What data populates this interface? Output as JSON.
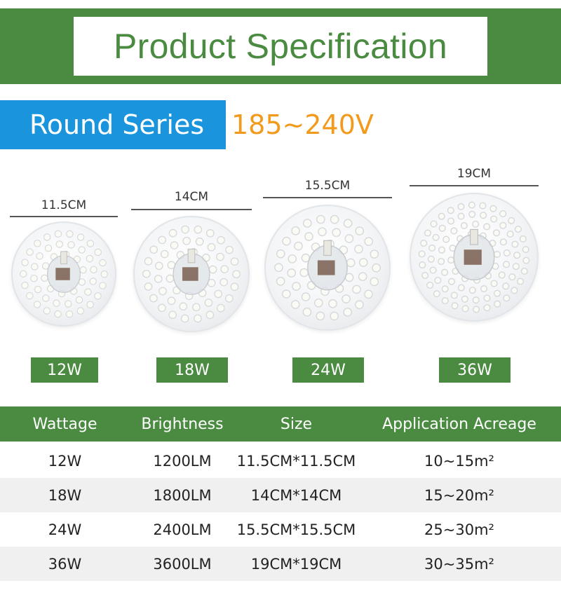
{
  "header": {
    "title": "Product Specification"
  },
  "series": {
    "label": "Round Series",
    "voltage": "185~240V"
  },
  "products": [
    {
      "size_label": "11.5CM",
      "wattage": "12W"
    },
    {
      "size_label": "14CM",
      "wattage": "18W"
    },
    {
      "size_label": "15.5CM",
      "wattage": "24W"
    },
    {
      "size_label": "19CM",
      "wattage": "36W"
    }
  ],
  "table": {
    "headers": [
      "Wattage",
      "Brightness",
      "Size",
      "Application Acreage"
    ],
    "rows": [
      [
        "12W",
        "1200LM",
        "11.5CM*11.5CM",
        "10~15m²"
      ],
      [
        "18W",
        "1800LM",
        "14CM*14CM",
        "15~20m²"
      ],
      [
        "24W",
        "2400LM",
        "15.5CM*15.5CM",
        "25~30m²"
      ],
      [
        "36W",
        "3600LM",
        "19CM*19CM",
        "30~35m²"
      ]
    ]
  },
  "colors": {
    "brand_green": "#4a8b41",
    "series_blue": "#1a95dd",
    "voltage_orange": "#f29a1c"
  }
}
